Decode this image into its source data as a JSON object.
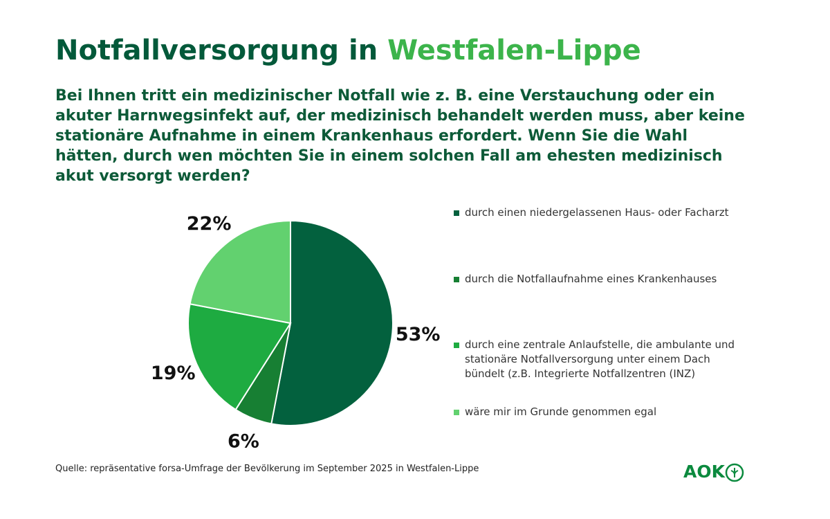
{
  "chart_data": {
    "type": "pie",
    "title": [
      "Notfallversorgung in",
      "Westfalen-Lippe"
    ],
    "title_colors": [
      "#03593a",
      "#3cb44b"
    ],
    "subtitle": "Bei Ihnen tritt ein medizinischer Notfall wie z. B. eine Verstauchung oder ein akuter Harnwegsinfekt auf, der medizinisch behandelt werden muss, aber keine stationäre Aufnahme in einem Krankenhaus erfordert. Wenn Sie die Wahl hätten, durch wen möchten Sie in einem solchen Fall am ehesten medizinisch akut versorgt werden?",
    "categories": [
      "durch einen niedergelassenen Haus- oder Facharzt",
      "durch die Notfallaufnahme eines Krankenhauses",
      "durch eine zentrale Anlaufstelle, die ambulante und stationäre Notfallversorgung unter einem Dach bündelt (z.B. Integrierte Notfallzentren (INZ)",
      "wäre mir im Grunde genommen egal"
    ],
    "values": [
      53,
      6,
      19,
      22
    ],
    "value_labels": [
      "53%",
      "6%",
      "19%",
      "22%"
    ],
    "colors": [
      "#03613e",
      "#177f33",
      "#1eab41",
      "#62d16f"
    ],
    "legend": "right",
    "source": "Quelle: repräsentative forsa-Umfrage der Bevölkerung im September 2025 in Westfalen-Lippe",
    "logo": "AOK"
  }
}
